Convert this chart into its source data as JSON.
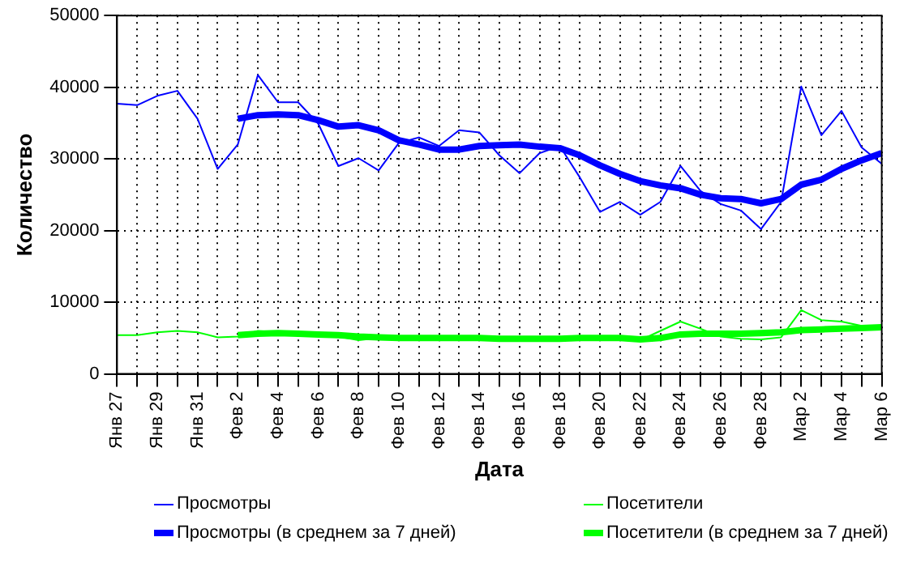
{
  "chart_data": {
    "type": "line",
    "xlabel": "Дата",
    "ylabel": "Количество",
    "categories": [
      "Янв 27",
      null,
      "Янв 29",
      null,
      "Янв 31",
      null,
      "Фев 2",
      null,
      "Фев 4",
      null,
      "Фев 6",
      null,
      "Фев 8",
      null,
      "Фев 10",
      null,
      "Фев 12",
      null,
      "Фев 14",
      null,
      "Фев 16",
      null,
      "Фев 18",
      null,
      "Фев 20",
      null,
      "Фев 22",
      null,
      "Фев 24",
      null,
      "Фев 26",
      null,
      "Фев 28",
      null,
      "Мар 2",
      null,
      "Мар 4",
      null,
      "Мар 6"
    ],
    "series": [
      {
        "name": "Просмотры",
        "color": "#0000ff",
        "values": [
          37700,
          37500,
          38800,
          39500,
          35600,
          28600,
          32000,
          41700,
          37900,
          37900,
          34900,
          29000,
          30100,
          28400,
          32200,
          33000,
          31800,
          34000,
          33700,
          30500,
          28000,
          30800,
          31800,
          27400,
          22600,
          24000,
          22200,
          24000,
          29000,
          25500,
          23700,
          22800,
          20200,
          24000,
          40100,
          33300,
          36700,
          31600,
          29300
        ]
      },
      {
        "name": "Посетители",
        "color": "#00ff00",
        "values": [
          5400,
          5400,
          5800,
          6000,
          5800,
          5100,
          5200,
          6000,
          5800,
          5600,
          5600,
          5200,
          4700,
          5000,
          5000,
          5000,
          5000,
          5000,
          5000,
          5000,
          4900,
          5000,
          5000,
          5000,
          5000,
          5000,
          4700,
          6000,
          7300,
          6300,
          5200,
          4900,
          4800,
          5100,
          8900,
          7500,
          7300,
          6700,
          6600
        ]
      },
      {
        "name": "Просмотры (в среднем за 7 дней)",
        "color": "#0000ff",
        "values": [
          null,
          null,
          null,
          null,
          null,
          null,
          35600,
          36100,
          36200,
          36100,
          35400,
          34500,
          34700,
          34000,
          32600,
          32000,
          31300,
          31300,
          31800,
          31900,
          32000,
          31700,
          31500,
          30500,
          29100,
          27900,
          26900,
          26300,
          25900,
          25000,
          24500,
          24400,
          23800,
          24400,
          26400,
          27100,
          28600,
          29800,
          30800
        ]
      },
      {
        "name": "Посетители (в среднем за 7 дней)",
        "color": "#00ff00",
        "values": [
          null,
          null,
          null,
          null,
          null,
          null,
          5400,
          5600,
          5700,
          5600,
          5500,
          5400,
          5200,
          5100,
          5000,
          5000,
          5000,
          5000,
          5000,
          4900,
          4900,
          4900,
          4900,
          5000,
          5000,
          5000,
          4800,
          5000,
          5500,
          5600,
          5600,
          5600,
          5700,
          5800,
          6100,
          6200,
          6300,
          6400,
          6500
        ]
      }
    ],
    "ylim": [
      0,
      50000
    ],
    "yticks": [
      0,
      10000,
      20000,
      30000,
      40000,
      50000
    ],
    "grid": true,
    "legend": "bottom",
    "marker": "none",
    "line_style": "solid"
  }
}
